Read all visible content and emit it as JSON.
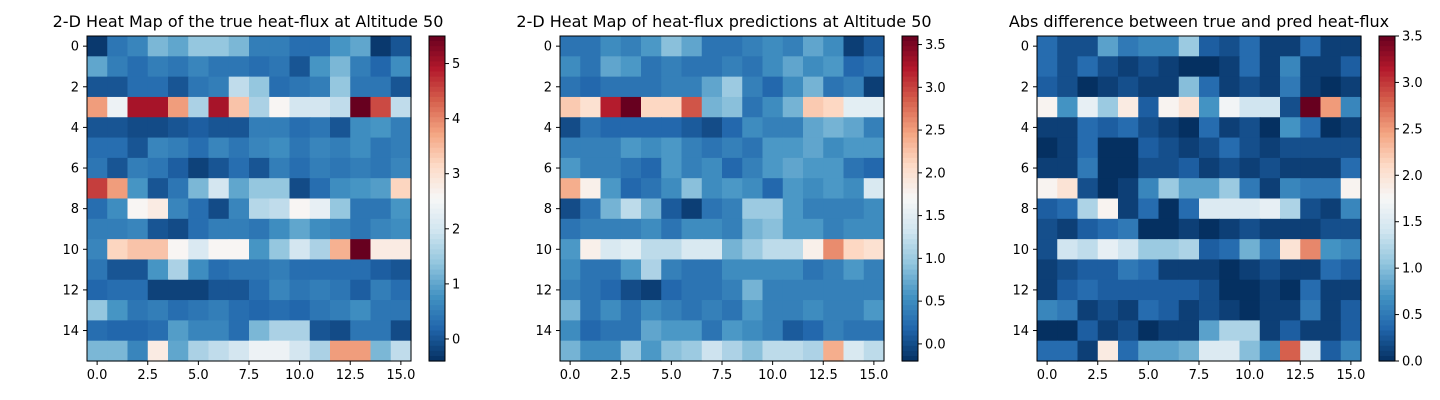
{
  "chart_data": [
    {
      "type": "heatmap",
      "title": "2-D Heat Map of the true heat-flux at Altitude 50",
      "xlabel": "",
      "ylabel": "",
      "x_ticks": [
        "0.0",
        "2.5",
        "5.0",
        "7.5",
        "10.0",
        "12.5",
        "15.0"
      ],
      "x_tick_values": [
        0,
        2.5,
        5,
        7.5,
        10,
        12.5,
        15
      ],
      "y_ticks": [
        "0",
        "2",
        "4",
        "6",
        "8",
        "10",
        "12",
        "14"
      ],
      "y_tick_values": [
        0,
        2,
        4,
        6,
        8,
        10,
        12,
        14
      ],
      "vmin": -0.4,
      "vmax": 5.5,
      "colorbar_ticks": [
        "0",
        "1",
        "2",
        "3",
        "4",
        "5"
      ],
      "colorbar_tick_values": [
        0,
        1,
        2,
        3,
        4,
        5
      ],
      "colormap": "RdBu_r",
      "values": [
        [
          -0.3,
          0.4,
          0.6,
          1.2,
          1.0,
          1.4,
          1.4,
          1.2,
          0.5,
          0.5,
          0.3,
          0.3,
          0.8,
          1.0,
          -0.3,
          0.0
        ],
        [
          1.0,
          0.5,
          0.3,
          0.5,
          0.4,
          0.6,
          0.4,
          0.4,
          0.3,
          0.4,
          0.0,
          0.8,
          1.2,
          0.5,
          0.2,
          0.7
        ],
        [
          0.0,
          0.0,
          0.3,
          0.3,
          0.0,
          0.4,
          0.5,
          1.8,
          1.4,
          0.3,
          0.4,
          0.5,
          1.4,
          0.4,
          0.4,
          0.0
        ],
        [
          3.8,
          2.4,
          5.0,
          5.0,
          3.8,
          1.6,
          5.0,
          3.4,
          1.6,
          2.6,
          2.0,
          2.0,
          1.8,
          5.5,
          4.5,
          1.8
        ],
        [
          0.0,
          0.0,
          -0.1,
          -0.1,
          0.0,
          0.1,
          0.0,
          0.0,
          0.5,
          0.5,
          0.3,
          0.4,
          0.0,
          0.7,
          0.8,
          0.5
        ],
        [
          0.3,
          0.3,
          0.0,
          0.6,
          0.5,
          0.3,
          0.6,
          0.4,
          0.6,
          0.7,
          0.4,
          0.6,
          0.5,
          0.7,
          0.4,
          0.5
        ],
        [
          0.4,
          0.0,
          0.5,
          0.4,
          0.1,
          -0.2,
          0.0,
          0.3,
          0.0,
          0.5,
          0.3,
          0.5,
          0.4,
          0.5,
          0.4,
          0.6
        ],
        [
          4.6,
          3.8,
          0.8,
          0.0,
          0.4,
          1.2,
          2.0,
          1.0,
          1.4,
          1.4,
          -0.1,
          0.3,
          0.7,
          0.8,
          0.9,
          3.2
        ],
        [
          0.3,
          0.7,
          2.6,
          2.8,
          0.6,
          0.3,
          -0.1,
          0.6,
          1.7,
          1.8,
          2.6,
          2.3,
          1.4,
          0.4,
          0.4,
          0.8
        ],
        [
          0.5,
          0.5,
          0.6,
          0.0,
          -0.1,
          0.3,
          0.5,
          0.5,
          0.4,
          0.7,
          1.0,
          0.7,
          0.6,
          0.4,
          0.6,
          0.7
        ],
        [
          0.6,
          3.2,
          3.4,
          3.4,
          2.6,
          2.1,
          2.6,
          2.6,
          0.8,
          1.4,
          2.0,
          1.6,
          3.6,
          5.5,
          2.8,
          2.8
        ],
        [
          0.4,
          0.0,
          0.0,
          0.8,
          1.6,
          0.7,
          0.3,
          0.4,
          0.4,
          0.5,
          0.3,
          0.3,
          0.3,
          0.3,
          0.1,
          0.0
        ],
        [
          0.2,
          0.3,
          0.3,
          -0.2,
          -0.2,
          -0.2,
          0.0,
          0.0,
          0.3,
          0.6,
          0.4,
          0.5,
          0.4,
          0.1,
          0.5,
          0.3
        ],
        [
          1.4,
          0.8,
          0.4,
          0.5,
          0.3,
          0.4,
          0.5,
          0.3,
          0.2,
          0.3,
          0.2,
          0.4,
          0.5,
          0.7,
          0.4,
          0.4
        ],
        [
          0.3,
          0.2,
          0.2,
          0.3,
          0.9,
          0.6,
          0.6,
          0.3,
          1.2,
          1.6,
          1.6,
          0.0,
          -0.1,
          0.4,
          0.4,
          -0.1
        ],
        [
          1.2,
          1.2,
          0.6,
          2.8,
          1.0,
          1.6,
          1.8,
          2.0,
          2.4,
          2.4,
          2.0,
          1.6,
          3.8,
          3.8,
          1.2,
          1.8
        ]
      ]
    },
    {
      "type": "heatmap",
      "title": "2-D Heat Map of heat-flux predictions at Altitude 50",
      "xlabel": "",
      "ylabel": "",
      "x_ticks": [
        "0.0",
        "2.5",
        "5.0",
        "7.5",
        "10.0",
        "12.5",
        "15.0"
      ],
      "x_tick_values": [
        0,
        2.5,
        5,
        7.5,
        10,
        12.5,
        15
      ],
      "y_ticks": [
        "0",
        "2",
        "4",
        "6",
        "8",
        "10",
        "12",
        "14"
      ],
      "y_tick_values": [
        0,
        2,
        4,
        6,
        8,
        10,
        12,
        14
      ],
      "vmin": -0.2,
      "vmax": 3.6,
      "colorbar_ticks": [
        "0.0",
        "0.5",
        "1.0",
        "1.5",
        "2.0",
        "2.5",
        "3.0",
        "3.5"
      ],
      "colorbar_tick_values": [
        0,
        0.5,
        1,
        1.5,
        2,
        2.5,
        3,
        3.5
      ],
      "colormap": "RdBu_r",
      "values": [
        [
          0.3,
          0.3,
          0.5,
          0.4,
          0.6,
          0.9,
          0.7,
          0.3,
          0.3,
          0.4,
          0.5,
          0.4,
          0.7,
          0.5,
          -0.1,
          0.1
        ],
        [
          0.5,
          0.3,
          0.7,
          0.6,
          0.3,
          0.4,
          0.3,
          0.3,
          0.4,
          0.3,
          0.5,
          0.7,
          0.5,
          0.6,
          0.2,
          0.3
        ],
        [
          0.3,
          0.2,
          0.3,
          0.3,
          0.3,
          0.4,
          0.4,
          0.7,
          1.0,
          0.4,
          0.2,
          0.5,
          0.8,
          0.3,
          0.4,
          -0.1
        ],
        [
          2.2,
          2.0,
          3.2,
          3.6,
          2.1,
          2.1,
          2.9,
          0.8,
          0.9,
          0.3,
          0.5,
          0.8,
          2.2,
          2.1,
          1.5,
          1.5
        ],
        [
          0.0,
          0.3,
          0.2,
          0.2,
          0.2,
          0.2,
          0.1,
          0.0,
          0.2,
          0.5,
          0.4,
          0.4,
          0.7,
          0.8,
          0.7,
          0.4
        ],
        [
          0.4,
          0.4,
          0.4,
          0.6,
          0.5,
          0.6,
          0.4,
          0.3,
          0.4,
          0.3,
          0.6,
          0.6,
          0.7,
          0.5,
          0.6,
          0.6
        ],
        [
          0.6,
          0.4,
          0.4,
          0.3,
          0.2,
          0.6,
          0.4,
          0.5,
          0.2,
          0.4,
          0.6,
          0.7,
          0.6,
          0.6,
          0.3,
          0.2
        ],
        [
          2.4,
          1.8,
          0.6,
          0.2,
          0.3,
          0.5,
          0.9,
          0.5,
          0.6,
          0.5,
          0.2,
          0.6,
          0.5,
          0.6,
          0.5,
          1.4
        ],
        [
          0.0,
          0.3,
          0.8,
          1.2,
          0.8,
          0.1,
          -0.1,
          0.3,
          0.4,
          1.0,
          1.0,
          0.6,
          0.4,
          0.4,
          0.4,
          0.5
        ],
        [
          0.3,
          0.4,
          0.4,
          0.4,
          0.5,
          0.3,
          0.5,
          0.5,
          0.4,
          0.8,
          0.9,
          0.6,
          0.6,
          0.4,
          0.5,
          0.5
        ],
        [
          0.6,
          1.8,
          1.4,
          1.5,
          1.2,
          1.2,
          1.4,
          1.4,
          0.8,
          1.0,
          1.2,
          1.2,
          1.8,
          2.6,
          2.1,
          2.0
        ],
        [
          0.5,
          0.3,
          0.3,
          0.6,
          1.1,
          0.4,
          0.3,
          0.3,
          0.5,
          0.5,
          0.5,
          0.5,
          0.3,
          0.4,
          0.6,
          0.4
        ],
        [
          0.4,
          0.3,
          0.2,
          0.0,
          -0.1,
          0.2,
          0.3,
          0.3,
          0.4,
          0.8,
          0.4,
          0.4,
          0.4,
          0.4,
          0.4,
          0.4
        ],
        [
          0.8,
          0.3,
          0.5,
          0.3,
          0.5,
          0.4,
          0.3,
          0.4,
          0.3,
          0.6,
          0.4,
          0.4,
          0.5,
          0.4,
          0.4,
          0.6
        ],
        [
          0.5,
          0.2,
          0.3,
          0.3,
          0.7,
          0.6,
          0.6,
          0.3,
          0.6,
          0.5,
          0.4,
          0.1,
          0.2,
          0.4,
          0.3,
          0.3
        ],
        [
          0.8,
          0.5,
          0.5,
          1.0,
          0.6,
          0.9,
          1.0,
          1.3,
          1.1,
          0.9,
          1.2,
          1.2,
          1.1,
          2.4,
          1.4,
          1.2
        ]
      ]
    },
    {
      "type": "heatmap",
      "title": "Abs difference between true and pred heat-flux",
      "xlabel": "",
      "ylabel": "",
      "x_ticks": [
        "0.0",
        "2.5",
        "5.0",
        "7.5",
        "10.0",
        "12.5",
        "15.0"
      ],
      "x_tick_values": [
        0,
        2.5,
        5,
        7.5,
        10,
        12.5,
        15
      ],
      "y_ticks": [
        "0",
        "2",
        "4",
        "6",
        "8",
        "10",
        "12",
        "14"
      ],
      "y_tick_values": [
        0,
        2,
        4,
        6,
        8,
        10,
        12,
        14
      ],
      "vmin": 0.0,
      "vmax": 3.5,
      "colorbar_ticks": [
        "0.0",
        "0.5",
        "1.0",
        "1.5",
        "2.0",
        "2.5",
        "3.0",
        "3.5"
      ],
      "colorbar_tick_values": [
        0,
        0.5,
        1,
        1.5,
        2,
        2.5,
        3,
        3.5
      ],
      "colormap": "RdBu_r",
      "values": [
        [
          0.4,
          0.2,
          0.2,
          0.8,
          0.5,
          0.6,
          0.6,
          1.1,
          0.3,
          0.2,
          0.4,
          0.1,
          0.1,
          0.4,
          0.1,
          0.1
        ],
        [
          0.4,
          0.2,
          0.4,
          0.2,
          0.1,
          0.2,
          0.1,
          0.0,
          0.0,
          0.1,
          0.4,
          0.1,
          0.6,
          0.1,
          0.1,
          0.3
        ],
        [
          0.3,
          0.2,
          0.0,
          0.1,
          0.2,
          0.1,
          0.1,
          1.0,
          0.4,
          0.1,
          0.2,
          0.1,
          0.5,
          0.1,
          0.0,
          0.1
        ],
        [
          1.8,
          0.7,
          1.6,
          1.1,
          1.9,
          0.3,
          1.8,
          2.0,
          0.7,
          1.7,
          1.4,
          1.4,
          0.2,
          3.5,
          2.5,
          0.6
        ],
        [
          0.1,
          0.1,
          0.4,
          0.3,
          0.4,
          0.2,
          0.1,
          0.0,
          0.4,
          0.1,
          0.2,
          0.0,
          0.7,
          0.4,
          0.0,
          0.1
        ],
        [
          0.0,
          0.1,
          0.4,
          0.0,
          0.0,
          0.3,
          0.2,
          0.1,
          0.2,
          0.4,
          0.2,
          0.1,
          0.2,
          0.2,
          0.2,
          0.2
        ],
        [
          0.1,
          0.1,
          0.5,
          0.0,
          0.0,
          0.2,
          0.2,
          0.3,
          0.1,
          0.2,
          0.1,
          0.2,
          0.1,
          0.1,
          0.1,
          0.4
        ],
        [
          1.8,
          2.0,
          0.2,
          0.0,
          0.1,
          0.6,
          1.1,
          0.8,
          0.8,
          1.1,
          0.5,
          0.1,
          0.6,
          0.5,
          0.5,
          1.8
        ],
        [
          0.3,
          0.4,
          1.2,
          1.8,
          0.1,
          0.4,
          0.0,
          0.4,
          1.5,
          1.5,
          1.5,
          1.6,
          1.2,
          0.2,
          0.1,
          0.6
        ],
        [
          0.2,
          0.1,
          0.3,
          0.4,
          0.5,
          0.0,
          0.0,
          0.1,
          0.0,
          0.1,
          0.2,
          0.1,
          0.1,
          0.1,
          0.2,
          0.2
        ],
        [
          0.2,
          1.4,
          1.3,
          1.6,
          1.4,
          1.1,
          1.1,
          1.2,
          0.3,
          0.4,
          0.9,
          0.5,
          2.0,
          2.6,
          0.7,
          0.6
        ],
        [
          0.1,
          0.2,
          0.3,
          0.3,
          0.5,
          0.4,
          0.1,
          0.1,
          0.1,
          0.0,
          0.1,
          0.2,
          0.1,
          0.1,
          0.4,
          0.3
        ],
        [
          0.1,
          0.3,
          0.4,
          0.3,
          0.3,
          0.3,
          0.3,
          0.3,
          0.2,
          0.0,
          0.0,
          0.1,
          0.0,
          0.4,
          0.1,
          0.1
        ],
        [
          0.6,
          0.5,
          0.1,
          0.2,
          0.1,
          0.4,
          0.3,
          0.1,
          0.2,
          0.1,
          0.0,
          0.1,
          0.1,
          0.5,
          0.1,
          0.3
        ],
        [
          0.0,
          0.0,
          0.3,
          0.1,
          0.2,
          0.0,
          0.1,
          0.1,
          0.8,
          1.2,
          1.2,
          0.1,
          0.3,
          0.1,
          0.1,
          0.3
        ],
        [
          0.4,
          0.4,
          0.1,
          1.9,
          0.4,
          0.8,
          0.8,
          0.9,
          1.5,
          1.5,
          1.0,
          0.6,
          2.8,
          1.5,
          0.3,
          0.6
        ]
      ]
    }
  ]
}
